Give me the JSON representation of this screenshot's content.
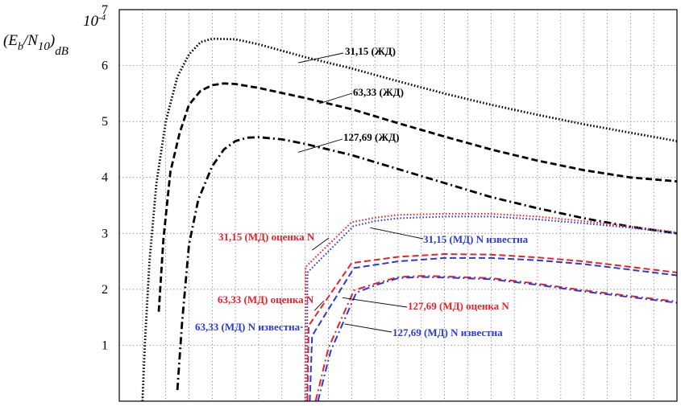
{
  "chart_data": {
    "type": "line",
    "title": "",
    "xlabel": "",
    "ylabel": {
      "open": "(",
      "E": "E",
      "E_sub": "b",
      "slash": "/",
      "N": "N",
      "N_sub": "10",
      "close": ")",
      "unit": "dB",
      "exponent": "10",
      "exponent_power": "-4"
    },
    "ylim": [
      0,
      7
    ],
    "yticks": [
      "1",
      "2",
      "3",
      "4",
      "5",
      "6",
      "7"
    ],
    "xlim": [
      0,
      24
    ],
    "x_grid_count": 24,
    "grid": true,
    "series": [
      {
        "name": "31,15 (ЖД)",
        "color": "#000000",
        "style": "dotted",
        "x": [
          1.0,
          1.1,
          1.3,
          1.6,
          2.0,
          2.5,
          3.0,
          3.5,
          4.0,
          5.0,
          6.0,
          8.0,
          10.0,
          12.0,
          14.0,
          16.0,
          18.0,
          20.0,
          22.0,
          24.0
        ],
        "y": [
          0.0,
          1.0,
          2.5,
          3.9,
          5.0,
          5.8,
          6.2,
          6.42,
          6.48,
          6.47,
          6.38,
          6.15,
          5.95,
          5.72,
          5.5,
          5.3,
          5.12,
          4.95,
          4.8,
          4.65
        ]
      },
      {
        "name": "63,33 (ЖД)",
        "color": "#000000",
        "style": "dashed",
        "x": [
          1.7,
          1.9,
          2.2,
          2.6,
          3.0,
          3.5,
          4.0,
          4.5,
          5.0,
          6.0,
          8.0,
          10.0,
          12.0,
          14.0,
          16.0,
          18.0,
          20.0,
          22.0,
          24.0
        ],
        "y": [
          1.6,
          2.9,
          4.1,
          4.8,
          5.3,
          5.55,
          5.65,
          5.68,
          5.67,
          5.6,
          5.42,
          5.22,
          4.97,
          4.73,
          4.5,
          4.3,
          4.13,
          4.0,
          3.93
        ]
      },
      {
        "name": "127,69 (ЖД)",
        "color": "#000000",
        "style": "dashdot",
        "x": [
          2.5,
          2.7,
          3.0,
          3.4,
          4.0,
          4.5,
          5.0,
          5.5,
          6.0,
          7.0,
          8.0,
          10.0,
          12.0,
          14.0,
          16.0,
          18.0,
          20.0,
          22.0,
          24.0
        ],
        "y": [
          0.2,
          1.4,
          2.8,
          3.6,
          4.2,
          4.5,
          4.65,
          4.71,
          4.72,
          4.68,
          4.6,
          4.4,
          4.15,
          3.9,
          3.65,
          3.45,
          3.27,
          3.12,
          3.0
        ]
      },
      {
        "name": "31,15 (МД) оценка N",
        "color": "#e8202a",
        "style": "dotted",
        "x": [
          8.0,
          8.02,
          10.0,
          11.0,
          12.0,
          14.0,
          16.0,
          18.0,
          20.0,
          22.0,
          24.0
        ],
        "y": [
          0.0,
          2.4,
          3.2,
          3.28,
          3.33,
          3.35,
          3.35,
          3.3,
          3.22,
          3.12,
          3.02
        ]
      },
      {
        "name": "31,15 (МД) N известна",
        "color": "#2a3ad8",
        "style": "dotted",
        "x": [
          8.08,
          8.1,
          10.08,
          11.0,
          12.0,
          14.0,
          16.0,
          18.0,
          20.0,
          22.0,
          24.0
        ],
        "y": [
          0.0,
          2.3,
          3.13,
          3.22,
          3.27,
          3.3,
          3.3,
          3.25,
          3.18,
          3.1,
          3.0
        ]
      },
      {
        "name": "63,33 (МД) оценка N",
        "color": "#e8202a",
        "style": "dashed",
        "x": [
          8.1,
          8.15,
          10.0,
          12.0,
          14.0,
          16.0,
          18.0,
          20.0,
          22.0,
          24.0
        ],
        "y": [
          0.0,
          1.35,
          2.47,
          2.58,
          2.63,
          2.62,
          2.57,
          2.5,
          2.4,
          2.3
        ]
      },
      {
        "name": "63,33 (МД) N известна",
        "color": "#2a3ad8",
        "style": "dashed",
        "x": [
          8.2,
          8.3,
          10.1,
          12.0,
          14.0,
          16.0,
          18.0,
          20.0,
          22.0,
          24.0
        ],
        "y": [
          0.0,
          1.17,
          2.38,
          2.5,
          2.56,
          2.56,
          2.52,
          2.45,
          2.35,
          2.25
        ]
      },
      {
        "name": "127,69 (МД) оценка N",
        "color": "#e8202a",
        "style": "dashdot",
        "x": [
          8.45,
          9.0,
          10.1,
          11.0,
          12.0,
          13.0,
          14.0,
          16.0,
          18.0,
          20.0,
          22.0,
          24.0
        ],
        "y": [
          0.0,
          0.95,
          1.98,
          2.1,
          2.22,
          2.24,
          2.23,
          2.2,
          2.1,
          1.98,
          1.88,
          1.78
        ]
      },
      {
        "name": "127,69 (МД) N известна",
        "color": "#2a3ad8",
        "style": "dashdot",
        "x": [
          8.55,
          9.1,
          10.2,
          11.0,
          12.0,
          13.0,
          14.0,
          16.0,
          18.0,
          20.0,
          22.0,
          24.0
        ],
        "y": [
          0.0,
          0.9,
          1.94,
          2.07,
          2.2,
          2.22,
          2.21,
          2.18,
          2.08,
          1.96,
          1.86,
          1.76
        ]
      }
    ],
    "annotations": [
      {
        "text": "31,15 (ЖД)",
        "color": "#000000",
        "point": [
          7.7,
          6.05
        ]
      },
      {
        "text": "63,33 (ЖД)",
        "color": "#000000",
        "point": [
          8.6,
          5.32
        ]
      },
      {
        "text": "127,69 (ЖД)",
        "color": "#000000",
        "point": [
          7.7,
          4.45
        ]
      },
      {
        "text": "31,15 (МД) оценка N",
        "color": "#e8202a",
        "point": [
          8.3,
          2.7
        ]
      },
      {
        "text": "31,15 (МД) N известна",
        "color": "#2a3ad8",
        "point": [
          10.8,
          3.1
        ]
      },
      {
        "text": "63,33 (МД) оценка N",
        "color": "#e8202a",
        "point": [
          8.4,
          1.62
        ]
      },
      {
        "text": "63,33 (МД) N известна",
        "color": "#2a3ad8",
        "point": [
          7.9,
          1.32
        ]
      },
      {
        "text": "127,69 (МД) оценка N",
        "color": "#e8202a",
        "point": [
          9.6,
          1.85
        ]
      },
      {
        "text": "127,69 (МД) N известна",
        "color": "#2a3ad8",
        "point": [
          9.7,
          1.38
        ]
      }
    ]
  }
}
